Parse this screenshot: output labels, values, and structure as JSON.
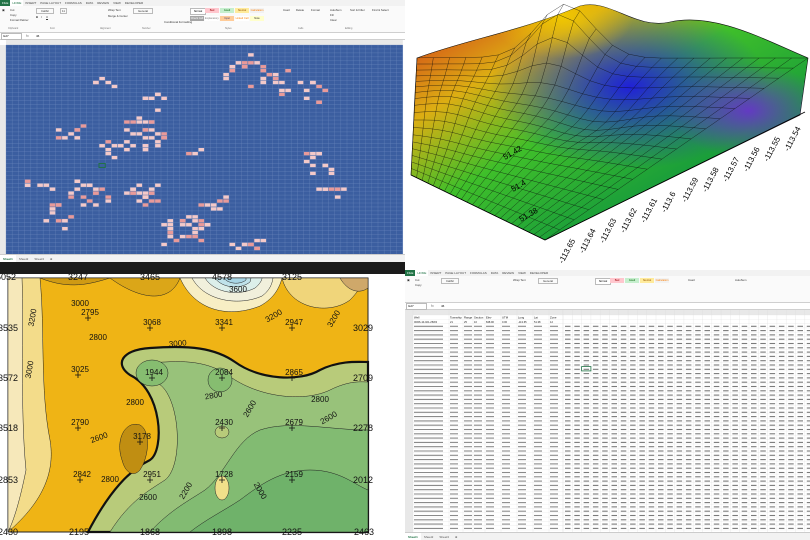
{
  "excel": {
    "tabs": [
      "FILE",
      "HOME",
      "INSERT",
      "PAGE LAYOUT",
      "FORMULAS",
      "DATA",
      "REVIEW",
      "VIEW",
      "DEVELOPER"
    ],
    "active_tab": "HOME",
    "clipboard": {
      "cut": "Cut",
      "copy": "Copy",
      "format_painter": "Format Painter",
      "label": "Clipboard"
    },
    "font": {
      "name": "Calibri",
      "size": "11",
      "label": "Font"
    },
    "alignment": {
      "wrap": "Wrap Text",
      "merge": "Merge & Center",
      "label": "Alignment"
    },
    "number": {
      "format": "General",
      "label": "Number"
    },
    "styles": {
      "conditional": "Conditional Formatting",
      "format_table": "Format as Table",
      "normal": "Normal",
      "bad": "Bad",
      "good": "Good",
      "neutral": "Neutral",
      "calculation": "Calculation",
      "check_cell": "Check Cell",
      "explanatory": "Explanatory...",
      "input": "Input",
      "linked_cell": "Linked Cell",
      "note": "Note",
      "label": "Styles"
    },
    "cells": {
      "insert": "Insert",
      "delete": "Delete",
      "format": "Format",
      "label": "Cells"
    },
    "editing": {
      "autosum": "AutoSum",
      "fill": "Fill",
      "clear": "Clear",
      "sort": "Sort & Filter",
      "find": "Find & Select",
      "label": "Editing"
    },
    "formula": {
      "fx": "fx"
    },
    "top": {
      "name_box": "G27",
      "formula": "46"
    },
    "bottom": {
      "name_box": "G27",
      "formula": "46"
    },
    "sheets": [
      "Sheet1",
      "Sheet2",
      "Sheet3"
    ],
    "active_sheet": "Sheet1",
    "highlight_color": "#f3c9c9",
    "grid_color": "#3b5ea0"
  },
  "surface": {
    "y_ticks": [
      "51.42",
      "51.4",
      "51.38"
    ],
    "x_ticks": [
      "-113.65",
      "-113.64",
      "-113.63",
      "-113.62",
      "-113.61",
      "-113.6",
      "-113.59",
      "-113.58",
      "-113.57",
      "-113.56",
      "-113.55",
      "-113.54"
    ]
  },
  "contour": {
    "edge_labels": [
      {
        "id": "top-0",
        "text": "5052"
      },
      {
        "id": "top-1",
        "text": "3247"
      },
      {
        "id": "top-2",
        "text": "3465"
      },
      {
        "id": "top-3",
        "text": "4578"
      },
      {
        "id": "top-4",
        "text": "3125"
      },
      {
        "id": "left-0",
        "text": "3535"
      },
      {
        "id": "left-1",
        "text": "3572"
      },
      {
        "id": "left-2",
        "text": "3518"
      },
      {
        "id": "left-3",
        "text": "2853"
      },
      {
        "id": "bot-0",
        "text": "2430"
      },
      {
        "id": "bot-1",
        "text": "2195"
      },
      {
        "id": "bot-2",
        "text": "1868"
      },
      {
        "id": "bot-3",
        "text": "1898"
      },
      {
        "id": "bot-4",
        "text": "2235"
      },
      {
        "id": "bot-5",
        "text": "2463"
      },
      {
        "id": "right-0",
        "text": "3029"
      },
      {
        "id": "right-1",
        "text": "2709"
      },
      {
        "id": "right-2",
        "text": "2278"
      },
      {
        "id": "right-3",
        "text": "2012"
      }
    ],
    "points": [
      {
        "text": "2795"
      },
      {
        "text": "3068"
      },
      {
        "text": "3341"
      },
      {
        "text": "2947"
      },
      {
        "text": "3025"
      },
      {
        "text": "1944"
      },
      {
        "text": "2084"
      },
      {
        "text": "2865"
      },
      {
        "text": "2790"
      },
      {
        "text": "3178"
      },
      {
        "text": "2430"
      },
      {
        "text": "2679"
      },
      {
        "text": "2842"
      },
      {
        "text": "2951"
      },
      {
        "text": "1728"
      },
      {
        "text": "2159"
      }
    ],
    "isolines": [
      {
        "text": "3200"
      },
      {
        "text": "3000"
      },
      {
        "text": "2800"
      },
      {
        "text": "3000"
      },
      {
        "text": "3600"
      },
      {
        "text": "3200"
      },
      {
        "text": "2800"
      },
      {
        "text": "2600"
      },
      {
        "text": "2600"
      },
      {
        "text": "2800"
      },
      {
        "text": "2800"
      },
      {
        "text": "2600"
      },
      {
        "text": "2600"
      },
      {
        "text": "2200"
      },
      {
        "text": "2000"
      },
      {
        "text": "2800"
      },
      {
        "text": "3000"
      },
      {
        "text": "3200"
      }
    ]
  },
  "table": {
    "headers": [
      "Well",
      "Township",
      "Range",
      "Section",
      "Elev",
      "UTM",
      "Long",
      "Lat",
      "Zone"
    ],
    "first_row": [
      "00/06-10-021-25W4",
      "21",
      "25",
      "10",
      "848.90",
      "0.00",
      "-113.65",
      "51.38",
      "12"
    ]
  }
}
